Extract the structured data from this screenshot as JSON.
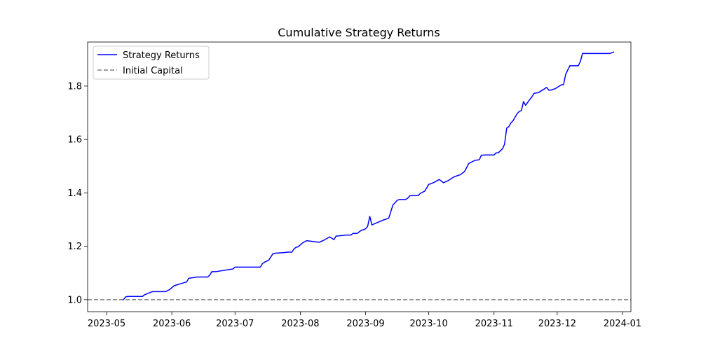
{
  "chart_data": {
    "type": "line",
    "title": "Cumulative Strategy Returns",
    "xlabel": "",
    "ylabel": "",
    "x_axis": {
      "type": "date",
      "range": [
        "2023-04-22",
        "2024-01-05"
      ],
      "ticks": [
        "2023-05-01",
        "2023-06-01",
        "2023-07-01",
        "2023-08-01",
        "2023-09-01",
        "2023-10-01",
        "2023-11-01",
        "2023-12-01",
        "2024-01-01"
      ],
      "tick_labels": [
        "2023-05",
        "2023-06",
        "2023-07",
        "2023-08",
        "2023-09",
        "2023-10",
        "2023-11",
        "2023-12",
        "2024-01"
      ]
    },
    "y_axis": {
      "range": [
        0.955,
        1.965
      ],
      "ticks": [
        1.0,
        1.2,
        1.4,
        1.6,
        1.8
      ],
      "tick_labels": [
        "1.0",
        "1.2",
        "1.4",
        "1.6",
        "1.8"
      ]
    },
    "grid": false,
    "legend_position": "top-left",
    "series": [
      {
        "name": "Strategy Returns",
        "color": "#0000ff",
        "line_style": "solid",
        "x": [
          "2023-05-08",
          "2023-05-09",
          "2023-05-10",
          "2023-05-11",
          "2023-05-18",
          "2023-05-19",
          "2023-05-22",
          "2023-05-23",
          "2023-05-29",
          "2023-05-31",
          "2023-06-02",
          "2023-06-07",
          "2023-06-08",
          "2023-06-09",
          "2023-06-13",
          "2023-06-18",
          "2023-06-19",
          "2023-06-20",
          "2023-06-22",
          "2023-06-30",
          "2023-07-01",
          "2023-07-03",
          "2023-07-04",
          "2023-07-05",
          "2023-07-07",
          "2023-07-13",
          "2023-07-14",
          "2023-07-15",
          "2023-07-17",
          "2023-07-19",
          "2023-07-20",
          "2023-07-22",
          "2023-07-24",
          "2023-07-26",
          "2023-07-28",
          "2023-07-29",
          "2023-07-30",
          "2023-07-31",
          "2023-08-01",
          "2023-08-02",
          "2023-08-04",
          "2023-08-10",
          "2023-08-12",
          "2023-08-15",
          "2023-08-17",
          "2023-08-18",
          "2023-08-23",
          "2023-08-24",
          "2023-08-25",
          "2023-08-26",
          "2023-08-28",
          "2023-08-29",
          "2023-08-30",
          "2023-08-31",
          "2023-09-01",
          "2023-09-02",
          "2023-09-03",
          "2023-09-04",
          "2023-09-09",
          "2023-09-12",
          "2023-09-14",
          "2023-09-15",
          "2023-09-16",
          "2023-09-17",
          "2023-09-20",
          "2023-09-21",
          "2023-09-22",
          "2023-09-26",
          "2023-09-27",
          "2023-09-29",
          "2023-09-30",
          "2023-10-01",
          "2023-10-02",
          "2023-10-04",
          "2023-10-05",
          "2023-10-06",
          "2023-10-08",
          "2023-10-10",
          "2023-10-13",
          "2023-10-16",
          "2023-10-18",
          "2023-10-20",
          "2023-10-23",
          "2023-10-25",
          "2023-10-26",
          "2023-10-28",
          "2023-10-29",
          "2023-10-30",
          "2023-10-31",
          "2023-11-01",
          "2023-11-02",
          "2023-11-03",
          "2023-11-05",
          "2023-11-06",
          "2023-11-07",
          "2023-11-08",
          "2023-11-09",
          "2023-11-10",
          "2023-11-12",
          "2023-11-13",
          "2023-11-14",
          "2023-11-15",
          "2023-11-16",
          "2023-11-18",
          "2023-11-19",
          "2023-11-20",
          "2023-11-22",
          "2023-11-25",
          "2023-11-26",
          "2023-11-27",
          "2023-11-28",
          "2023-11-30",
          "2023-12-03",
          "2023-12-04",
          "2023-12-05",
          "2023-12-06",
          "2023-12-07",
          "2023-12-11",
          "2023-12-12",
          "2023-12-13",
          "2023-12-14",
          "2023-12-26",
          "2023-12-28"
        ],
        "y": [
          1.0,
          1.0,
          1.01,
          1.012,
          1.012,
          1.018,
          1.028,
          1.03,
          1.03,
          1.038,
          1.052,
          1.064,
          1.066,
          1.08,
          1.085,
          1.085,
          1.092,
          1.105,
          1.105,
          1.115,
          1.122,
          1.122,
          1.122,
          1.122,
          1.122,
          1.122,
          1.135,
          1.14,
          1.148,
          1.172,
          1.174,
          1.175,
          1.176,
          1.178,
          1.178,
          1.19,
          1.196,
          1.198,
          1.205,
          1.212,
          1.221,
          1.215,
          1.222,
          1.235,
          1.225,
          1.238,
          1.242,
          1.242,
          1.242,
          1.248,
          1.248,
          1.254,
          1.26,
          1.262,
          1.265,
          1.275,
          1.312,
          1.28,
          1.297,
          1.305,
          1.355,
          1.363,
          1.372,
          1.375,
          1.375,
          1.38,
          1.389,
          1.39,
          1.398,
          1.406,
          1.418,
          1.432,
          1.434,
          1.441,
          1.446,
          1.45,
          1.438,
          1.445,
          1.46,
          1.468,
          1.48,
          1.51,
          1.522,
          1.524,
          1.541,
          1.542,
          1.542,
          1.542,
          1.542,
          1.542,
          1.55,
          1.55,
          1.565,
          1.582,
          1.642,
          1.648,
          1.662,
          1.67,
          1.697,
          1.705,
          1.708,
          1.742,
          1.728,
          1.75,
          1.76,
          1.773,
          1.775,
          1.79,
          1.795,
          1.785,
          1.785,
          1.79,
          1.805,
          1.805,
          1.843,
          1.86,
          1.876,
          1.876,
          1.892,
          1.922,
          1.922,
          1.922,
          1.928
        ]
      },
      {
        "name": "Initial Capital",
        "color": "#808080",
        "line_style": "dashed",
        "y_constant": 1.0
      }
    ]
  }
}
